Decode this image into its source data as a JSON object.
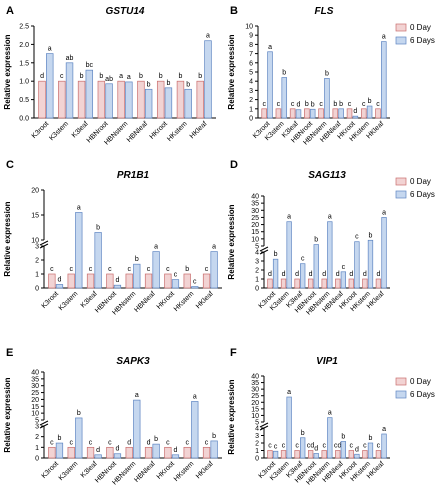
{
  "legend": {
    "items": [
      "0 Day",
      "6 Days"
    ]
  },
  "colors": {
    "day0": "#f2d3d3",
    "day6": "#c5d7ef",
    "stroke0": "#c96d6d",
    "stroke6": "#5e85c2"
  },
  "chart_data": [
    {
      "panel": "A",
      "title": "GSTU14",
      "type": "bar",
      "ylabel": "Relative expression",
      "categories": [
        "K3root",
        "K3stem",
        "K3leaf",
        "HBNroot",
        "HBNstem",
        "HBNleaf",
        "HKroot",
        "HKstem",
        "HKleaf"
      ],
      "series": [
        {
          "name": "0 Day",
          "values": [
            1,
            1,
            1,
            1,
            1,
            1,
            1,
            1,
            1
          ],
          "letters": [
            "d",
            "c",
            "b",
            "b",
            "a",
            "b",
            "b",
            "b",
            "b"
          ]
        },
        {
          "name": "6 Days",
          "values": [
            1.75,
            1.5,
            1.3,
            0.93,
            0.98,
            0.78,
            0.82,
            0.78,
            2.1
          ],
          "letters": [
            "a",
            "ab",
            "bc",
            "ab",
            "a",
            "b",
            "b",
            "b",
            "a"
          ]
        }
      ],
      "y_ticks": [
        0,
        0.5,
        1,
        1.5,
        2,
        2.5
      ],
      "y_tick_labels": [
        "0.0",
        "0.5",
        "1.0",
        "1.5",
        "2.0",
        "2.5"
      ],
      "ylim": [
        0,
        2.5
      ]
    },
    {
      "panel": "B",
      "title": "FLS",
      "type": "bar",
      "ylabel": "Relative expression",
      "categories": [
        "K3root",
        "K3stem",
        "K3leaf",
        "HBNroot",
        "HBNstem",
        "HBNleaf",
        "HKroot",
        "HKstem",
        "HKleaf"
      ],
      "series": [
        {
          "name": "0 Day",
          "values": [
            1,
            1,
            1,
            1,
            1,
            1,
            1,
            1,
            1
          ],
          "letters": [
            "c",
            "c",
            "c",
            "b",
            "c",
            "b",
            "c",
            "c",
            "c"
          ]
        },
        {
          "name": "6 Days",
          "values": [
            7.2,
            4.4,
            0.9,
            0.95,
            4.3,
            1.0,
            0.2,
            1.3,
            8.3
          ],
          "letters": [
            "a",
            "b",
            "d",
            "b",
            "b",
            "b",
            "d",
            "b",
            "a"
          ]
        }
      ],
      "y_ticks": [
        0,
        1,
        2,
        3,
        4,
        5,
        6,
        7,
        8,
        9,
        10
      ],
      "y_tick_labels": [
        "0",
        "1",
        "2",
        "3",
        "4",
        "5",
        "6",
        "7",
        "8",
        "9",
        "10"
      ],
      "ylim": [
        0,
        10
      ],
      "legend": "top-right"
    },
    {
      "panel": "C",
      "title": "PR1B1",
      "type": "bar",
      "ylabel": "Relative expression",
      "categories": [
        "K3root",
        "K3stem",
        "K3leaf",
        "HBNroot",
        "HBNstem",
        "HBNleaf",
        "HKroot",
        "HKstem",
        "HKleaf"
      ],
      "series": [
        {
          "name": "0 Day",
          "values": [
            1,
            1,
            1,
            1,
            1,
            1,
            1,
            1,
            1
          ],
          "letters": [
            "c",
            "c",
            "c",
            "c",
            "c",
            "c",
            "c",
            "b",
            "c"
          ]
        },
        {
          "name": "6 Days",
          "values": [
            0.25,
            15.5,
            11.5,
            0.2,
            1.7,
            2.6,
            0.6,
            0.1,
            2.6
          ],
          "letters": [
            "d",
            "a",
            "b",
            "d",
            "b",
            "a",
            "c",
            "c",
            "a"
          ]
        }
      ],
      "y_axis_break": [
        3,
        10
      ],
      "y_tick_labels": [
        "0",
        "1",
        "2",
        "3",
        "10",
        "15",
        "20"
      ],
      "ylim": [
        0,
        20
      ]
    },
    {
      "panel": "D",
      "title": "SAG113",
      "type": "bar",
      "ylabel": "Relative expression",
      "categories": [
        "K3root",
        "K3stem",
        "K3leaf",
        "HBNroot",
        "HBNstem",
        "HBNleaf",
        "HKroot",
        "HKstem",
        "HKleaf"
      ],
      "series": [
        {
          "name": "0 Day",
          "values": [
            1,
            1,
            1,
            1,
            1,
            1,
            1,
            1,
            1
          ],
          "letters": [
            "d",
            "d",
            "d",
            "d",
            "d",
            "d",
            "d",
            "d",
            "d"
          ]
        },
        {
          "name": "6 Days",
          "values": [
            3.2,
            22,
            2.7,
            6,
            22,
            1.8,
            8,
            9,
            25
          ],
          "letters": [
            "b",
            "a",
            "c",
            "b",
            "a",
            "c",
            "c",
            "b",
            "a"
          ]
        }
      ],
      "y_axis_break": [
        4,
        5
      ],
      "y_tick_labels": [
        "0",
        "1",
        "2",
        "3",
        "4",
        "5",
        "10",
        "15",
        "20",
        "25",
        "30",
        "35",
        "40"
      ],
      "ylim": [
        0,
        40
      ],
      "legend": "top-right"
    },
    {
      "panel": "E",
      "title": "SAPK3",
      "type": "bar",
      "ylabel": "Relative expression",
      "categories": [
        "K3root",
        "K3stem",
        "K3leaf",
        "HBNroot",
        "HBNstem",
        "HBNleaf",
        "HKroot",
        "HKstem",
        "HKleaf"
      ],
      "series": [
        {
          "name": "0 Day",
          "values": [
            1,
            1,
            1,
            1,
            1,
            1,
            1,
            1,
            1
          ],
          "letters": [
            "c",
            "c",
            "c",
            "c",
            "d",
            "d",
            "c",
            "c",
            "c"
          ]
        },
        {
          "name": "6 Days",
          "values": [
            1.4,
            6.5,
            0.3,
            0.4,
            19.5,
            1.3,
            0.3,
            18.5,
            1.6
          ],
          "letters": [
            "b",
            "b",
            "d",
            "d",
            "a",
            "b",
            "d",
            "a",
            "b"
          ]
        }
      ],
      "y_axis_break": [
        3,
        5
      ],
      "y_tick_labels": [
        "0",
        "1",
        "2",
        "3",
        "5",
        "10",
        "15",
        "20",
        "25",
        "30",
        "35",
        "40"
      ],
      "ylim": [
        0,
        40
      ]
    },
    {
      "panel": "F",
      "title": "VIP1",
      "type": "bar",
      "ylabel": "Relative expression",
      "categories": [
        "K3root",
        "K3stem",
        "K3leaf",
        "HBNroot",
        "HBNstem",
        "HBNleaf",
        "HKroot",
        "HKstem",
        "HKleaf"
      ],
      "series": [
        {
          "name": "0 Day",
          "values": [
            1,
            1,
            1,
            1,
            1,
            1,
            1,
            1,
            1
          ],
          "letters": [
            "c",
            "c",
            "c",
            "cd",
            "c",
            "cd",
            "c",
            "c",
            "c"
          ]
        },
        {
          "name": "6 Days",
          "values": [
            0.9,
            24,
            2.7,
            0.6,
            8.3,
            2.2,
            0.5,
            2.0,
            3.2
          ],
          "letters": [
            "c",
            "a",
            "b",
            "d",
            "a",
            "b",
            "d",
            "b",
            "a"
          ]
        }
      ],
      "y_axis_break": [
        4,
        5
      ],
      "y_tick_labels": [
        "0",
        "1",
        "2",
        "3",
        "4",
        "5",
        "10",
        "15",
        "20",
        "25",
        "30",
        "35",
        "40"
      ],
      "ylim": [
        0,
        40
      ],
      "legend": "top-right"
    }
  ]
}
